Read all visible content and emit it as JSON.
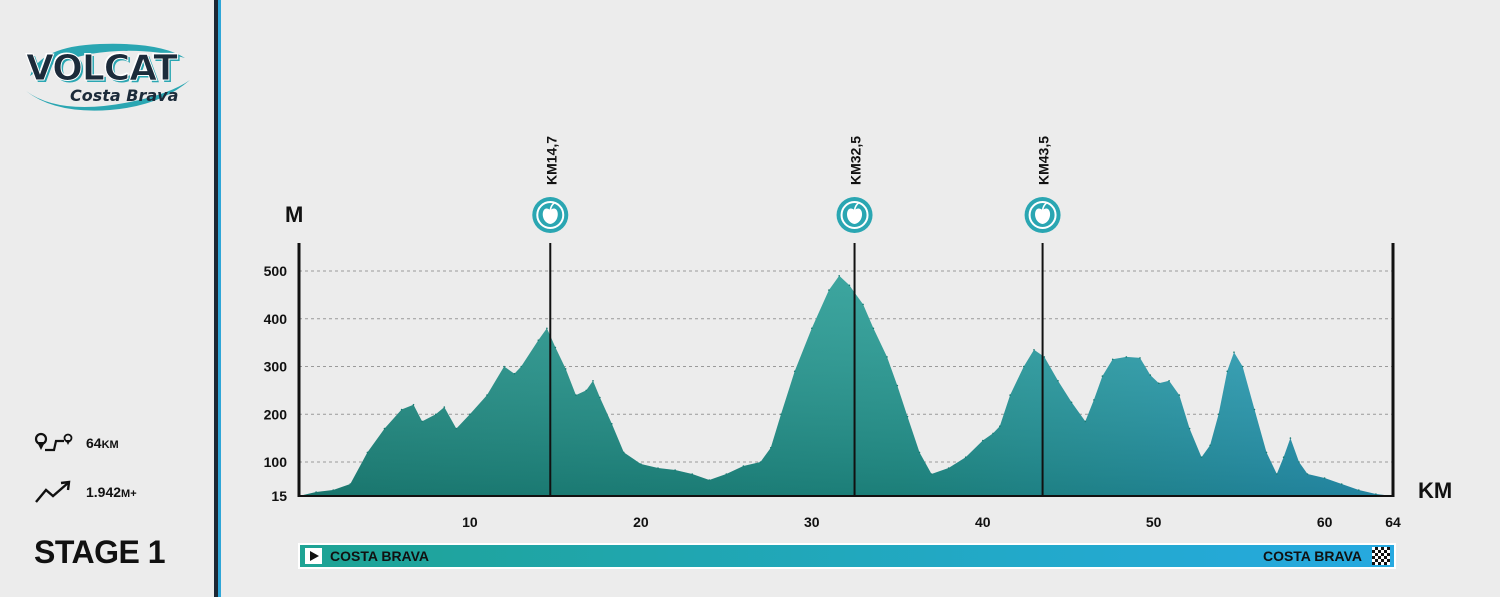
{
  "brand": {
    "name": "VOLCAT",
    "subtitle": "Costa Brava",
    "accent": "#1ea394",
    "accent_blue": "#27a9e0",
    "dark": "#1c2b3a"
  },
  "stats": {
    "distance": "64",
    "distance_unit": "KM",
    "elevation": "1.942",
    "elevation_unit": "M+",
    "distance_icon": "route-icon",
    "elevation_icon": "elevation-gain-icon"
  },
  "stage": {
    "title": "STAGE 1"
  },
  "route": {
    "start": "COSTA BRAVA",
    "finish": "COSTA BRAVA",
    "start_icon": "play-icon",
    "finish_icon": "checkered-flag-icon"
  },
  "chart_data": {
    "type": "area",
    "title": "",
    "xlabel": "KM",
    "ylabel": "M",
    "xlim": [
      0,
      64
    ],
    "ylim": [
      15,
      550
    ],
    "x_ticks": [
      10,
      20,
      30,
      40,
      50,
      60,
      64
    ],
    "y_ticks": [
      15,
      100,
      200,
      300,
      400,
      500
    ],
    "grid": "horizontal dashed",
    "feed_zones": [
      {
        "km": 14.7,
        "label": "KM14,7",
        "icon": "apple-icon"
      },
      {
        "km": 32.5,
        "label": "KM32,5",
        "icon": "apple-icon"
      },
      {
        "km": 43.5,
        "label": "KM43,5",
        "icon": "apple-icon"
      }
    ],
    "series": [
      {
        "values": [
          [
            0,
            15
          ],
          [
            1,
            25
          ],
          [
            2,
            30
          ],
          [
            3,
            45
          ],
          [
            4,
            120
          ],
          [
            5,
            170
          ],
          [
            6,
            210
          ],
          [
            6.7,
            220
          ],
          [
            7.2,
            185
          ],
          [
            8,
            200
          ],
          [
            8.5,
            215
          ],
          [
            9.2,
            170
          ],
          [
            10,
            200
          ],
          [
            11,
            240
          ],
          [
            12,
            300
          ],
          [
            12.6,
            285
          ],
          [
            13,
            300
          ],
          [
            14,
            355
          ],
          [
            14.5,
            380
          ],
          [
            15,
            340
          ],
          [
            15.6,
            295
          ],
          [
            16.2,
            240
          ],
          [
            16.8,
            250
          ],
          [
            17.2,
            270
          ],
          [
            17.6,
            235
          ],
          [
            18.3,
            180
          ],
          [
            19,
            120
          ],
          [
            20,
            95
          ],
          [
            21,
            85
          ],
          [
            22,
            80
          ],
          [
            23,
            70
          ],
          [
            24,
            55
          ],
          [
            25,
            70
          ],
          [
            26,
            90
          ],
          [
            27,
            100
          ],
          [
            27.6,
            130
          ],
          [
            28.2,
            200
          ],
          [
            29,
            290
          ],
          [
            30,
            380
          ],
          [
            31,
            460
          ],
          [
            31.6,
            490
          ],
          [
            32.2,
            470
          ],
          [
            32.5,
            455
          ],
          [
            33,
            430
          ],
          [
            33.6,
            380
          ],
          [
            34.4,
            320
          ],
          [
            35,
            260
          ],
          [
            35.6,
            195
          ],
          [
            36.3,
            120
          ],
          [
            37,
            70
          ],
          [
            38,
            85
          ],
          [
            39,
            110
          ],
          [
            40,
            145
          ],
          [
            40.6,
            160
          ],
          [
            41,
            175
          ],
          [
            41.6,
            240
          ],
          [
            42.4,
            300
          ],
          [
            43,
            335
          ],
          [
            43.6,
            320
          ],
          [
            44.4,
            270
          ],
          [
            45.2,
            225
          ],
          [
            46,
            185
          ],
          [
            46.5,
            230
          ],
          [
            47,
            280
          ],
          [
            47.6,
            315
          ],
          [
            48.4,
            320
          ],
          [
            49.2,
            318
          ],
          [
            49.8,
            282
          ],
          [
            50.3,
            265
          ],
          [
            50.9,
            270
          ],
          [
            51.5,
            240
          ],
          [
            52.1,
            170
          ],
          [
            52.8,
            110
          ],
          [
            53.3,
            135
          ],
          [
            53.8,
            200
          ],
          [
            54.3,
            290
          ],
          [
            54.7,
            330
          ],
          [
            55.2,
            300
          ],
          [
            55.9,
            210
          ],
          [
            56.6,
            120
          ],
          [
            57.2,
            70
          ],
          [
            57.6,
            110
          ],
          [
            58,
            150
          ],
          [
            58.5,
            100
          ],
          [
            59,
            70
          ],
          [
            60,
            60
          ],
          [
            61,
            45
          ],
          [
            62,
            30
          ],
          [
            63,
            20
          ],
          [
            64,
            15
          ]
        ]
      }
    ]
  }
}
